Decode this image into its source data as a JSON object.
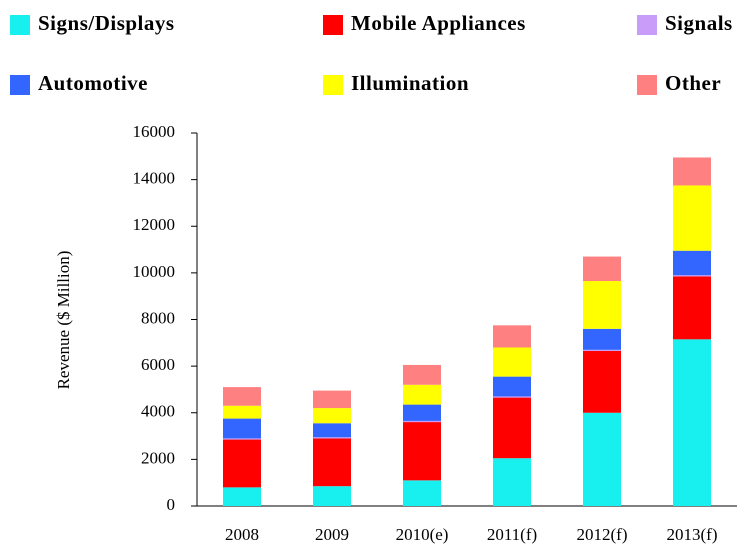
{
  "chart_data": {
    "type": "stacked_bar",
    "y_label": "Revenue ($ Million)",
    "categories": [
      "2008",
      "2009",
      "2010(e)",
      "2011(f)",
      "2012(f)",
      "2013(f)"
    ],
    "series": [
      {
        "name": "Signs/Displays",
        "color": "#18f0f0",
        "values": [
          800,
          850,
          1100,
          2050,
          4000,
          7150
        ]
      },
      {
        "name": "Mobile Appliances",
        "color": "#ff0000",
        "values": [
          2050,
          2050,
          2500,
          2600,
          2650,
          2700
        ]
      },
      {
        "name": "Signals",
        "color": "#c89cf8",
        "values": [
          50,
          50,
          50,
          50,
          50,
          50
        ]
      },
      {
        "name": "Automotive",
        "color": "#3366ff",
        "values": [
          850,
          600,
          700,
          850,
          900,
          1050
        ]
      },
      {
        "name": "Illumination",
        "color": "#ffff00",
        "values": [
          550,
          650,
          850,
          1250,
          2050,
          2800
        ]
      },
      {
        "name": "Other",
        "color": "#ff8080",
        "values": [
          800,
          750,
          850,
          950,
          1050,
          1200
        ]
      }
    ],
    "ylim": [
      0,
      16000
    ],
    "yticks": [
      0,
      2000,
      4000,
      6000,
      8000,
      10000,
      12000,
      14000,
      16000
    ]
  }
}
